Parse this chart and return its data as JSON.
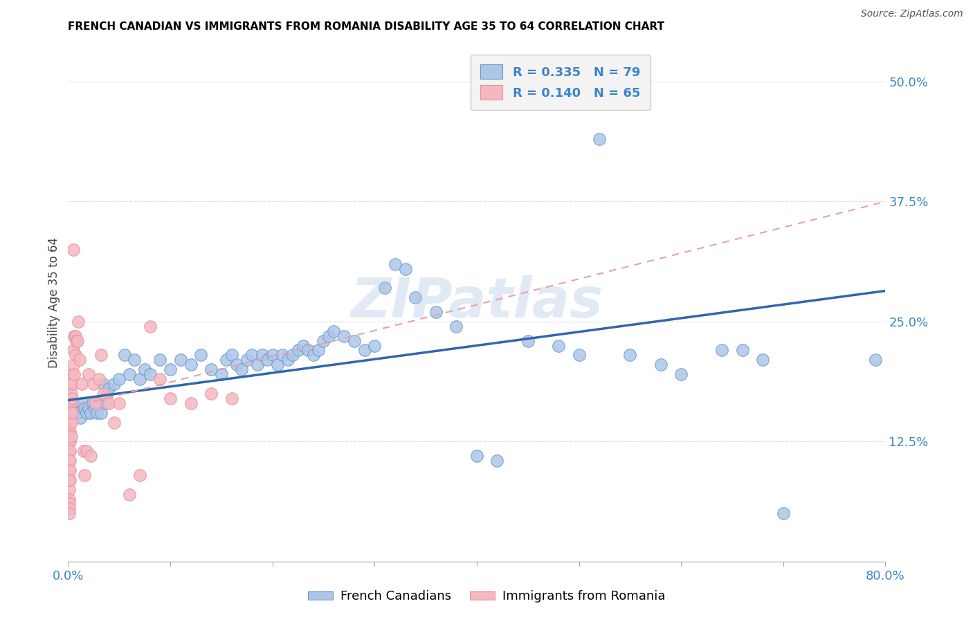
{
  "title": "FRENCH CANADIAN VS IMMIGRANTS FROM ROMANIA DISABILITY AGE 35 TO 64 CORRELATION CHART",
  "source": "Source: ZipAtlas.com",
  "ylabel": "Disability Age 35 to 64",
  "xlim": [
    0.0,
    0.8
  ],
  "ylim": [
    0.0,
    0.54
  ],
  "xtick_positions": [
    0.0,
    0.1,
    0.2,
    0.3,
    0.4,
    0.5,
    0.6,
    0.7,
    0.8
  ],
  "xticklabels": [
    "0.0%",
    "",
    "",
    "",
    "",
    "",
    "",
    "",
    "80.0%"
  ],
  "ytick_positions": [
    0.0,
    0.125,
    0.25,
    0.375,
    0.5
  ],
  "ytick_labels": [
    "",
    "12.5%",
    "25.0%",
    "37.5%",
    "50.0%"
  ],
  "blue_R": "0.335",
  "blue_N": "79",
  "pink_R": "0.140",
  "pink_N": "65",
  "blue_fill": "#adc6e8",
  "blue_edge": "#6699cc",
  "pink_fill": "#f4b8c1",
  "pink_edge": "#e8909a",
  "trend_blue_color": "#3366aa",
  "trend_pink_color": "#e8a0a8",
  "watermark": "ZIPatlas",
  "blue_points_x": [
    0.005,
    0.008,
    0.01,
    0.012,
    0.014,
    0.016,
    0.018,
    0.02,
    0.022,
    0.024,
    0.026,
    0.028,
    0.03,
    0.032,
    0.034,
    0.036,
    0.038,
    0.04,
    0.045,
    0.05,
    0.055,
    0.06,
    0.065,
    0.07,
    0.075,
    0.08,
    0.09,
    0.1,
    0.11,
    0.12,
    0.13,
    0.14,
    0.15,
    0.155,
    0.16,
    0.165,
    0.17,
    0.175,
    0.18,
    0.185,
    0.19,
    0.195,
    0.2,
    0.205,
    0.21,
    0.215,
    0.22,
    0.225,
    0.23,
    0.235,
    0.24,
    0.245,
    0.25,
    0.255,
    0.26,
    0.27,
    0.28,
    0.29,
    0.3,
    0.31,
    0.32,
    0.33,
    0.34,
    0.36,
    0.38,
    0.4,
    0.42,
    0.45,
    0.48,
    0.5,
    0.52,
    0.55,
    0.58,
    0.6,
    0.64,
    0.66,
    0.68,
    0.7,
    0.79
  ],
  "blue_points_y": [
    0.165,
    0.16,
    0.155,
    0.15,
    0.165,
    0.16,
    0.155,
    0.16,
    0.155,
    0.165,
    0.16,
    0.155,
    0.165,
    0.155,
    0.185,
    0.165,
    0.175,
    0.18,
    0.185,
    0.19,
    0.215,
    0.195,
    0.21,
    0.19,
    0.2,
    0.195,
    0.21,
    0.2,
    0.21,
    0.205,
    0.215,
    0.2,
    0.195,
    0.21,
    0.215,
    0.205,
    0.2,
    0.21,
    0.215,
    0.205,
    0.215,
    0.21,
    0.215,
    0.205,
    0.215,
    0.21,
    0.215,
    0.22,
    0.225,
    0.22,
    0.215,
    0.22,
    0.23,
    0.235,
    0.24,
    0.235,
    0.23,
    0.22,
    0.225,
    0.285,
    0.31,
    0.305,
    0.275,
    0.26,
    0.245,
    0.11,
    0.105,
    0.23,
    0.225,
    0.215,
    0.44,
    0.215,
    0.205,
    0.195,
    0.22,
    0.22,
    0.21,
    0.05,
    0.21
  ],
  "pink_points_x": [
    0.001,
    0.001,
    0.001,
    0.001,
    0.001,
    0.001,
    0.001,
    0.001,
    0.001,
    0.001,
    0.001,
    0.001,
    0.001,
    0.001,
    0.002,
    0.002,
    0.002,
    0.002,
    0.002,
    0.002,
    0.002,
    0.002,
    0.002,
    0.003,
    0.003,
    0.003,
    0.003,
    0.003,
    0.004,
    0.004,
    0.004,
    0.004,
    0.005,
    0.005,
    0.005,
    0.006,
    0.006,
    0.007,
    0.007,
    0.008,
    0.009,
    0.01,
    0.011,
    0.013,
    0.015,
    0.016,
    0.018,
    0.02,
    0.022,
    0.025,
    0.027,
    0.03,
    0.032,
    0.035,
    0.04,
    0.045,
    0.05,
    0.06,
    0.07,
    0.08,
    0.09,
    0.1,
    0.12,
    0.14,
    0.16
  ],
  "pink_points_y": [
    0.155,
    0.15,
    0.145,
    0.135,
    0.125,
    0.115,
    0.105,
    0.095,
    0.085,
    0.075,
    0.065,
    0.06,
    0.055,
    0.05,
    0.165,
    0.155,
    0.145,
    0.135,
    0.125,
    0.115,
    0.105,
    0.095,
    0.085,
    0.185,
    0.175,
    0.165,
    0.145,
    0.13,
    0.195,
    0.185,
    0.17,
    0.155,
    0.325,
    0.22,
    0.205,
    0.235,
    0.195,
    0.235,
    0.215,
    0.23,
    0.23,
    0.25,
    0.21,
    0.185,
    0.115,
    0.09,
    0.115,
    0.195,
    0.11,
    0.185,
    0.165,
    0.19,
    0.215,
    0.175,
    0.165,
    0.145,
    0.165,
    0.07,
    0.09,
    0.245,
    0.19,
    0.17,
    0.165,
    0.175,
    0.17
  ],
  "blue_trend_y0": 0.168,
  "blue_trend_y1": 0.282,
  "pink_trend_y0": 0.16,
  "pink_trend_y1": 0.375,
  "background_color": "#ffffff",
  "grid_color": "#cccccc",
  "tick_label_color": "#3d85c8",
  "legend_box_color": "#f3f3f3",
  "legend_edge_color": "#cccccc"
}
